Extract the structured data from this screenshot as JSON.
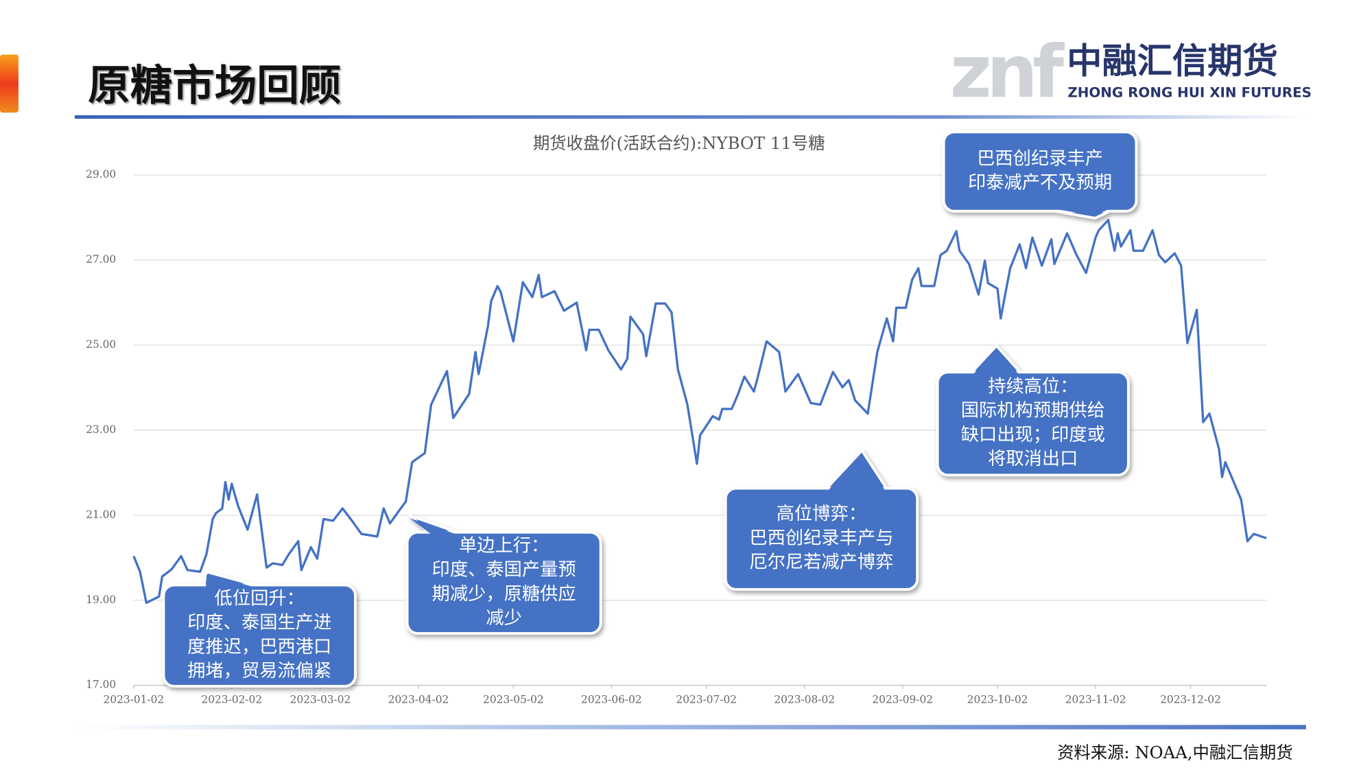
{
  "header": {
    "title": "原糖市场回顾",
    "logo_mark": "znf",
    "logo_name": "中融汇信期货",
    "logo_english": "ZHONG RONG HUI XIN FUTURES"
  },
  "footer": {
    "source": "资料来源: NOAA,中融汇信期货"
  },
  "chart_data": {
    "type": "line",
    "title": "期货收盘价(活跃合约):NYBOT 11号糖",
    "color": "#4472c4",
    "grid": true,
    "x": [
      "2023-01-02",
      "2023-01-04",
      "2023-01-06",
      "2023-01-10",
      "2023-01-11",
      "2023-01-13",
      "2023-01-14",
      "2023-01-17",
      "2023-01-19",
      "2023-01-23",
      "2023-01-25",
      "2023-01-27",
      "2023-01-28",
      "2023-01-30",
      "2023-01-31",
      "2023-02-01",
      "2023-02-02",
      "2023-02-04",
      "2023-02-07",
      "2023-02-10",
      "2023-02-13",
      "2023-02-15",
      "2023-02-18",
      "2023-02-20",
      "2023-02-23",
      "2023-02-24",
      "2023-02-27",
      "2023-03-01",
      "2023-03-03",
      "2023-03-06",
      "2023-03-09",
      "2023-03-12",
      "2023-03-15",
      "2023-03-20",
      "2023-03-22",
      "2023-03-24",
      "2023-03-27",
      "2023-03-29",
      "2023-03-31",
      "2023-04-04",
      "2023-04-06",
      "2023-04-11",
      "2023-04-13",
      "2023-04-18",
      "2023-04-20",
      "2023-04-21",
      "2023-04-24",
      "2023-04-25",
      "2023-04-27",
      "2023-04-28",
      "2023-05-02",
      "2023-05-05",
      "2023-05-08",
      "2023-05-10",
      "2023-05-11",
      "2023-05-15",
      "2023-05-18",
      "2023-05-22",
      "2023-05-25",
      "2023-05-26",
      "2023-05-29",
      "2023-06-01",
      "2023-06-05",
      "2023-06-07",
      "2023-06-08",
      "2023-06-12",
      "2023-06-13",
      "2023-06-16",
      "2023-06-19",
      "2023-06-21",
      "2023-06-23",
      "2023-06-26",
      "2023-06-29",
      "2023-06-30",
      "2023-07-04",
      "2023-07-06",
      "2023-07-07",
      "2023-07-10",
      "2023-07-12",
      "2023-07-14",
      "2023-07-17",
      "2023-07-18",
      "2023-07-21",
      "2023-07-25",
      "2023-07-27",
      "2023-07-31",
      "2023-08-04",
      "2023-08-07",
      "2023-08-11",
      "2023-08-14",
      "2023-08-16",
      "2023-08-18",
      "2023-08-22",
      "2023-08-25",
      "2023-08-28",
      "2023-08-30",
      "2023-08-31",
      "2023-09-03",
      "2023-09-05",
      "2023-09-07",
      "2023-09-08",
      "2023-09-12",
      "2023-09-14",
      "2023-09-16",
      "2023-09-19",
      "2023-09-20",
      "2023-09-23",
      "2023-09-26",
      "2023-09-28",
      "2023-09-29",
      "2023-10-02",
      "2023-10-03",
      "2023-10-06",
      "2023-10-09",
      "2023-10-11",
      "2023-10-13",
      "2023-10-16",
      "2023-10-19",
      "2023-10-20",
      "2023-10-24",
      "2023-10-27",
      "2023-10-30",
      "2023-11-02",
      "2023-11-03",
      "2023-11-06",
      "2023-11-08",
      "2023-11-09",
      "2023-11-10",
      "2023-11-13",
      "2023-11-14",
      "2023-11-17",
      "2023-11-20",
      "2023-11-22",
      "2023-11-24",
      "2023-11-27",
      "2023-11-29",
      "2023-12-01",
      "2023-12-04",
      "2023-12-06",
      "2023-12-08",
      "2023-12-11",
      "2023-12-12",
      "2023-12-13",
      "2023-12-18",
      "2023-12-20",
      "2023-12-22",
      "2023-12-26"
    ],
    "values": [
      20.04,
      19.67,
      18.94,
      19.09,
      19.56,
      19.67,
      19.73,
      20.04,
      19.71,
      19.67,
      20.08,
      20.91,
      21.05,
      21.16,
      21.78,
      21.37,
      21.74,
      21.22,
      20.66,
      21.49,
      19.77,
      19.87,
      19.83,
      20.08,
      20.39,
      19.71,
      20.25,
      19.98,
      20.91,
      20.87,
      21.16,
      20.87,
      20.56,
      20.5,
      21.16,
      20.81,
      21.12,
      21.32,
      22.25,
      22.46,
      23.6,
      24.39,
      23.29,
      23.85,
      24.84,
      24.32,
      25.46,
      26.04,
      26.39,
      26.25,
      25.09,
      26.48,
      26.13,
      26.65,
      26.13,
      26.27,
      25.81,
      26.0,
      24.88,
      25.36,
      25.36,
      24.88,
      24.43,
      24.68,
      25.67,
      25.26,
      24.74,
      25.98,
      25.98,
      25.77,
      24.43,
      23.6,
      22.21,
      22.88,
      23.33,
      23.25,
      23.5,
      23.5,
      23.85,
      24.26,
      23.91,
      24.18,
      25.09,
      24.84,
      23.91,
      24.32,
      23.64,
      23.6,
      24.37,
      24.01,
      24.18,
      23.7,
      23.39,
      24.84,
      25.63,
      25.09,
      25.88,
      25.88,
      26.54,
      26.81,
      26.39,
      26.39,
      27.12,
      27.22,
      27.68,
      27.22,
      26.91,
      26.19,
      26.99,
      26.46,
      26.33,
      25.63,
      26.81,
      27.37,
      26.81,
      27.53,
      26.87,
      27.49,
      26.91,
      27.63,
      27.12,
      26.7,
      27.53,
      27.7,
      27.94,
      27.22,
      27.63,
      27.32,
      27.7,
      27.22,
      27.22,
      27.7,
      27.12,
      26.95,
      27.16,
      26.87,
      25.05,
      25.83,
      23.19,
      23.39,
      22.56,
      21.9,
      22.25,
      21.37,
      20.39,
      20.56,
      20.46
    ],
    "xlim": [
      "2023-01-02",
      "2023-12-26"
    ],
    "xticks": [
      "2023-01-02",
      "2023-02-02",
      "2023-03-02",
      "2023-04-02",
      "2023-05-02",
      "2023-06-02",
      "2023-07-02",
      "2023-08-02",
      "2023-09-02",
      "2023-10-02",
      "2023-11-02",
      "2023-12-02"
    ],
    "ylim": [
      17,
      29
    ],
    "yticks": [
      {
        "value": 17,
        "label": "17.00"
      },
      {
        "value": 19,
        "label": "19.00"
      },
      {
        "value": 21,
        "label": "21.00"
      },
      {
        "value": 23,
        "label": "23.00"
      },
      {
        "value": 25,
        "label": "25.00"
      },
      {
        "value": 27,
        "label": "27.00"
      },
      {
        "value": 29,
        "label": "29.00"
      }
    ],
    "annotations": [
      {
        "lines": [
          "低位回升：",
          "印度、泰国生产进",
          "度推迟，巴西港口",
          "拥堵，贸易流偏紧"
        ]
      },
      {
        "lines": [
          "单边上行：",
          "印度、泰国产量预",
          "期减少，原糖供应",
          "减少"
        ]
      },
      {
        "lines": [
          "高位博弈：",
          "巴西创纪录丰产与",
          "厄尔尼若减产博弈"
        ]
      },
      {
        "lines": [
          "持续高位：",
          "国际机构预期供给",
          "缺口出现；印度或",
          "将取消出口"
        ]
      },
      {
        "lines": [
          "巴西创纪录丰产",
          "印泰减产不及预期"
        ]
      }
    ]
  }
}
